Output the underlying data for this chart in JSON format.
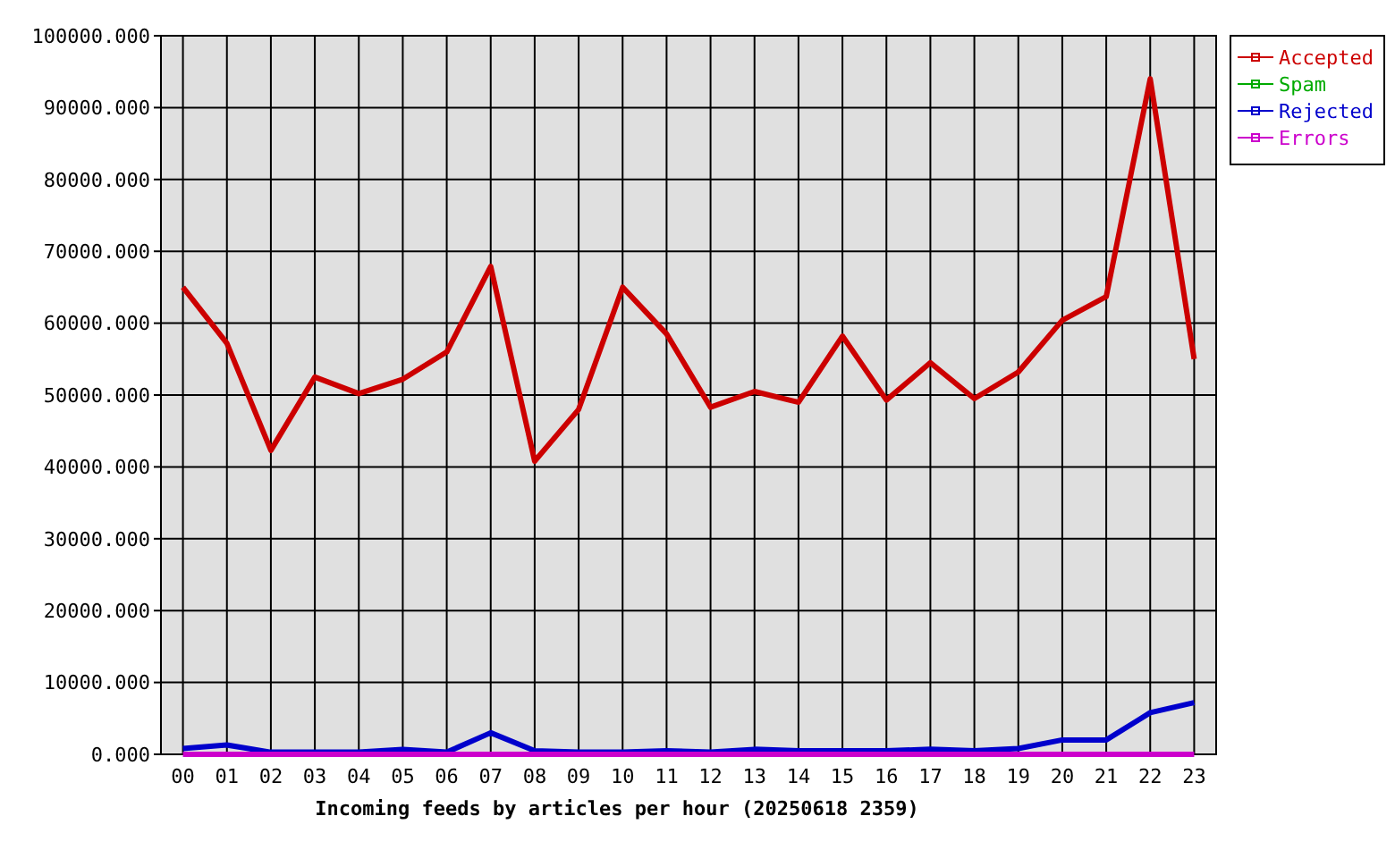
{
  "chart_data": {
    "type": "line",
    "xlabel": "Incoming feeds by articles per hour (20250618 2359)",
    "categories": [
      "00",
      "01",
      "02",
      "03",
      "04",
      "05",
      "06",
      "07",
      "08",
      "09",
      "10",
      "11",
      "12",
      "13",
      "14",
      "15",
      "16",
      "17",
      "18",
      "19",
      "20",
      "21",
      "22",
      "23"
    ],
    "series": [
      {
        "name": "Accepted",
        "color": "#cc0000",
        "values": [
          65000,
          57200,
          42300,
          52500,
          50200,
          52200,
          56000,
          67900,
          40800,
          48000,
          65000,
          58500,
          48300,
          50500,
          49000,
          58200,
          49300,
          54500,
          49500,
          53200,
          60400,
          63700,
          94000,
          55000
        ]
      },
      {
        "name": "Spam",
        "color": "#00aa00",
        "values": [
          null,
          null,
          null,
          null,
          null,
          null,
          null,
          null,
          null,
          null,
          null,
          null,
          null,
          null,
          null,
          null,
          null,
          null,
          null,
          null,
          null,
          null,
          null,
          null
        ]
      },
      {
        "name": "Rejected",
        "color": "#0000cc",
        "values": [
          800,
          1300,
          300,
          300,
          300,
          700,
          300,
          3000,
          500,
          300,
          300,
          500,
          300,
          700,
          500,
          500,
          500,
          700,
          500,
          800,
          2000,
          2000,
          5800,
          7200
        ]
      },
      {
        "name": "Errors",
        "color": "#cc00cc",
        "values": [
          0,
          0,
          0,
          0,
          0,
          0,
          0,
          0,
          0,
          0,
          0,
          0,
          0,
          0,
          0,
          0,
          0,
          0,
          0,
          0,
          0,
          0,
          0,
          0
        ]
      }
    ],
    "ylim": [
      0,
      100000
    ],
    "yticks": [
      {
        "value": 0,
        "label": "0.000"
      },
      {
        "value": 10000,
        "label": "10000.000"
      },
      {
        "value": 20000,
        "label": "20000.000"
      },
      {
        "value": 30000,
        "label": "30000.000"
      },
      {
        "value": 40000,
        "label": "40000.000"
      },
      {
        "value": 50000,
        "label": "50000.000"
      },
      {
        "value": 60000,
        "label": "60000.000"
      },
      {
        "value": 70000,
        "label": "70000.000"
      },
      {
        "value": 80000,
        "label": "80000.000"
      },
      {
        "value": 90000,
        "label": "90000.000"
      },
      {
        "value": 100000,
        "label": "100000.000"
      }
    ],
    "grid": true,
    "legend": "top right",
    "marker": "none",
    "line_style": "solid"
  }
}
